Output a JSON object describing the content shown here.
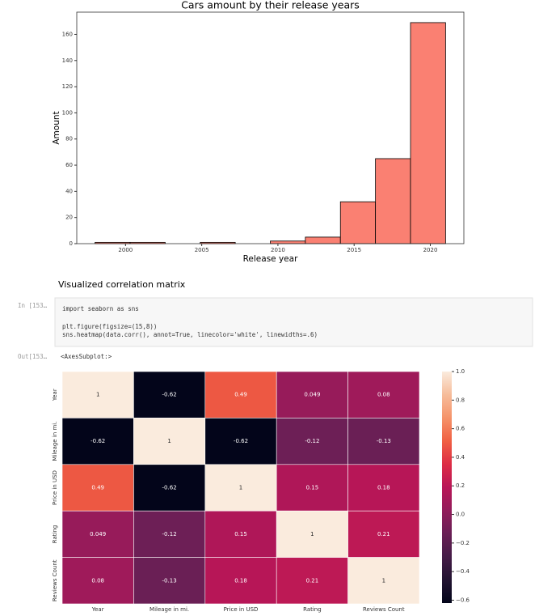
{
  "notebook": {
    "heading": "Visualized correlation matrix",
    "in_prompt": "In [153…",
    "out_prompt": "Out[153…",
    "code": [
      "import seaborn as sns",
      "plt.figure(figsize=(15,8))",
      "sns.heatmap(data.corr(), annot=True, linecolor='white', linewidths=.6)"
    ],
    "output_text": "<AxesSubplot:>"
  },
  "chart_data": [
    {
      "type": "histogram",
      "title": "Cars amount by their release years",
      "xlabel": "Release year",
      "ylabel": "Amount",
      "bins": [
        1998,
        2000.3,
        2002.6,
        2004.9,
        2007.2,
        2009.5,
        2011.8,
        2014.1,
        2016.4,
        2018.7,
        2021
      ],
      "values": [
        1,
        1,
        0,
        1,
        0,
        2,
        5,
        32,
        65,
        169
      ],
      "color": "#fa8072",
      "edgecolor": "#000000",
      "xlim": [
        1996.8,
        2022.2
      ],
      "ylim": [
        0,
        177
      ],
      "xticks": [
        2000,
        2005,
        2010,
        2015,
        2020
      ],
      "yticks": [
        0,
        20,
        40,
        60,
        80,
        100,
        120,
        140,
        160
      ]
    },
    {
      "type": "heatmap",
      "categories": [
        "Year",
        "Mileage in mi.",
        "Price in USD",
        "Rating",
        "Reviews Count"
      ],
      "y_categories": [
        "Year",
        "Mileage in mi.",
        "Price in USD",
        "Rating",
        "Reviews Count"
      ],
      "values": [
        [
          1,
          -0.62,
          0.49,
          0.049,
          0.08
        ],
        [
          -0.62,
          1,
          -0.62,
          -0.12,
          -0.13
        ],
        [
          0.49,
          -0.62,
          1,
          0.15,
          0.18
        ],
        [
          0.049,
          -0.12,
          0.15,
          1,
          0.21
        ],
        [
          0.08,
          -0.13,
          0.18,
          0.21,
          1
        ]
      ],
      "clim": [
        -0.62,
        1
      ],
      "colormap": [
        "#03051a",
        "#221331",
        "#451c47",
        "#691f55",
        "#921c5b",
        "#b91657",
        "#dd2c45",
        "#f06043",
        "#f5936a",
        "#f6bc9a",
        "#faebdd"
      ],
      "linecolor": "#ffffff",
      "cbar_ticks": [
        {
          "value": -0.6,
          "label": "−0.6"
        },
        {
          "value": -0.4,
          "label": "−0.4"
        },
        {
          "value": -0.2,
          "label": "−0.2"
        },
        {
          "value": 0,
          "label": "0.0"
        },
        0.2,
        0.4,
        0.6,
        0.8,
        {
          "value": 1,
          "label": "1.0"
        }
      ]
    }
  ]
}
